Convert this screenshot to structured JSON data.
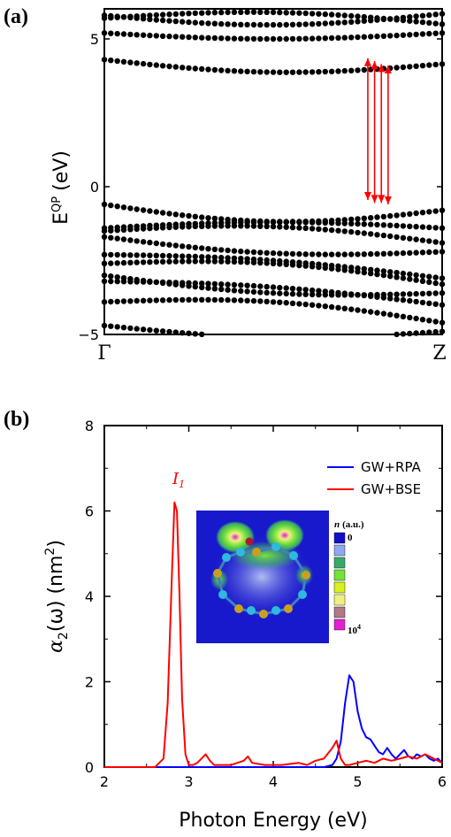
{
  "chart_data": [
    {
      "panel": "(a)",
      "type": "scatter",
      "ylabel": "E",
      "ylabel_sup": "QP",
      "ylabel_unit": "(eV)",
      "ylim": [
        -5.0,
        6.0
      ],
      "yticks": [
        "5",
        "0",
        "−5"
      ],
      "xticks": [
        "Γ",
        "Z"
      ],
      "band_energies_at_gamma": [
        5.8,
        5.7,
        5.2,
        4.3,
        -0.6,
        -1.4,
        -1.5,
        -1.7,
        -2.3,
        -2.6,
        -3.0,
        -3.2,
        -3.9,
        -4.7,
        -4.9
      ],
      "band_energies_at_z": [
        5.85,
        5.5,
        5.2,
        4.15,
        -0.8,
        -1.4,
        -1.9,
        -2.2,
        -3.1,
        -3.3,
        -3.6,
        -4.0,
        -4.6,
        -4.9
      ],
      "transition_color": "#ff0000",
      "transitions": [
        {
          "k": 0.78,
          "from": -0.45,
          "to": 4.35
        },
        {
          "k": 0.8,
          "from": -0.55,
          "to": 4.25
        },
        {
          "k": 0.82,
          "from": -0.55,
          "to": 4.15
        },
        {
          "k": 0.84,
          "from": -0.6,
          "to": 4.1
        }
      ]
    },
    {
      "panel": "(b)",
      "type": "line",
      "xlabel": "Photon Energy (eV)",
      "ylabel_prefix": "α",
      "ylabel_sub": "2",
      "ylabel_mid": "(ω)  (nm",
      "ylabel_sup": "2",
      "ylabel_end": ")",
      "xlim": [
        2,
        6
      ],
      "ylim": [
        0,
        8
      ],
      "xticks": [
        "2",
        "3",
        "4",
        "5",
        "6"
      ],
      "yticks": [
        "0",
        "2",
        "4",
        "6",
        "8"
      ],
      "annotation": {
        "text": "I",
        "sub": "1",
        "x": 2.85,
        "y": 6.6,
        "color": "#ff0000"
      },
      "series": [
        {
          "name": "GW+RPA",
          "color": "#0000ff",
          "x": [
            2.0,
            4.6,
            4.7,
            4.75,
            4.8,
            4.85,
            4.9,
            4.95,
            5.0,
            5.05,
            5.1,
            5.15,
            5.2,
            5.25,
            5.3,
            5.35,
            5.4,
            5.45,
            5.5,
            5.55,
            5.6,
            5.65,
            5.7,
            5.75,
            5.8,
            5.85,
            5.9,
            5.95,
            6.0
          ],
          "values": [
            0.0,
            0.0,
            0.05,
            0.2,
            0.6,
            1.5,
            2.15,
            2.0,
            1.3,
            0.9,
            0.7,
            0.65,
            0.5,
            0.35,
            0.3,
            0.45,
            0.3,
            0.2,
            0.3,
            0.4,
            0.25,
            0.2,
            0.3,
            0.25,
            0.3,
            0.2,
            0.15,
            0.2,
            0.1
          ]
        },
        {
          "name": "GW+BSE",
          "color": "#ff0000",
          "x": [
            2.0,
            2.6,
            2.7,
            2.75,
            2.8,
            2.83,
            2.86,
            2.89,
            2.92,
            2.96,
            3.0,
            3.05,
            3.1,
            3.15,
            3.2,
            3.25,
            3.3,
            3.5,
            3.65,
            3.7,
            3.75,
            3.9,
            4.1,
            4.3,
            4.4,
            4.5,
            4.6,
            4.7,
            4.75,
            4.8,
            4.85,
            4.9,
            5.0,
            5.1,
            5.2,
            5.3,
            5.4,
            5.5,
            5.6,
            5.7,
            5.8,
            5.9,
            6.0
          ],
          "values": [
            0.0,
            0.0,
            0.2,
            1.5,
            4.5,
            6.2,
            6.0,
            4.0,
            1.6,
            0.3,
            0.05,
            0.05,
            0.1,
            0.2,
            0.3,
            0.15,
            0.05,
            0.05,
            0.15,
            0.25,
            0.1,
            0.05,
            0.05,
            0.1,
            0.05,
            0.15,
            0.2,
            0.45,
            0.62,
            0.2,
            0.05,
            0.05,
            0.1,
            0.15,
            0.1,
            0.2,
            0.15,
            0.2,
            0.25,
            0.2,
            0.3,
            0.2,
            0.1
          ]
        }
      ],
      "inset": {
        "colorbar_title_var": "n",
        "colorbar_title_unit": "(a.u.)",
        "colorbar_min": "0",
        "colorbar_max_base": "10",
        "colorbar_max_exp": "4",
        "colors": [
          "#1010c8",
          "#8fa8f0",
          "#3aa86a",
          "#74e23a",
          "#d8f020",
          "#f0f080",
          "#b07888",
          "#e020d0"
        ]
      }
    }
  ]
}
